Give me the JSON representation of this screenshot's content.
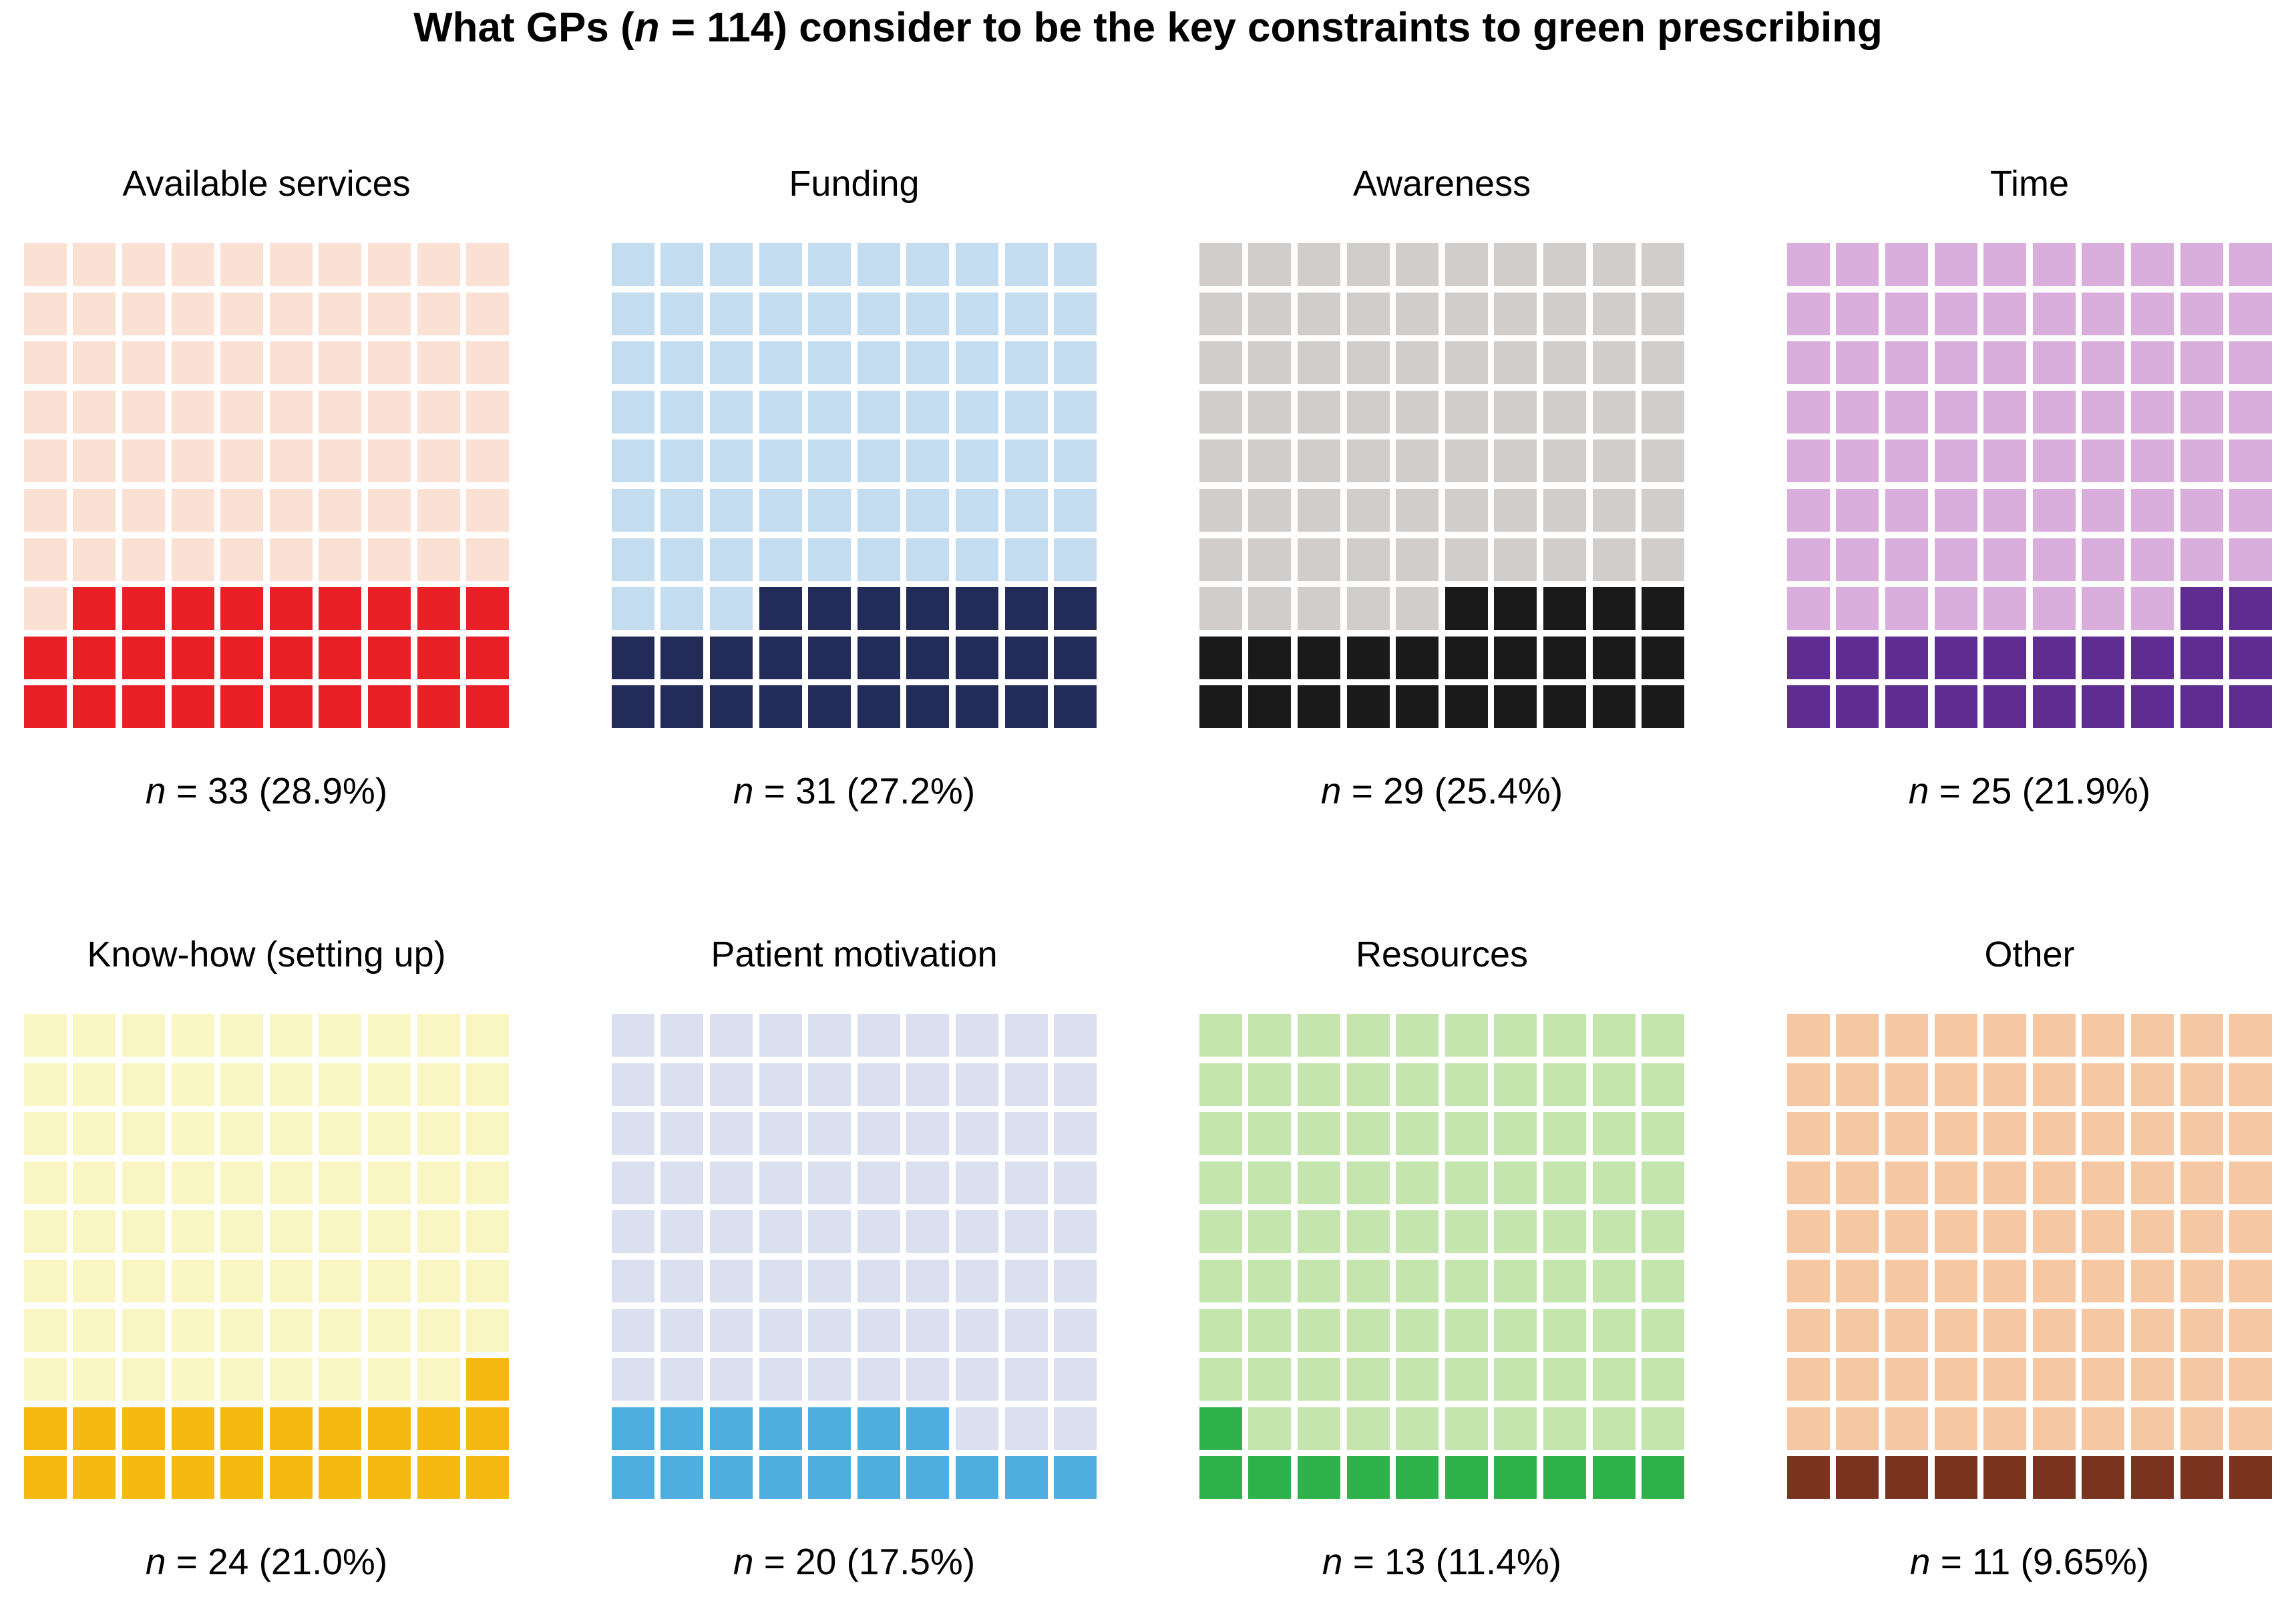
{
  "title": {
    "part1": "What GPs (",
    "n_italic": "n",
    "part2": " = 114) consider to be the key constraints to green prescribing"
  },
  "chart_data": {
    "type": "waffle",
    "title": "What GPs (n = 114) consider to be the key constraints to green prescribing",
    "total_n": 114,
    "grid_layout": "2 rows x 4 columns of waffle panels; each waffle is a 10x10 grid of squares, 1 square = 1% of respondents, dark squares filled from the bottom",
    "categories": [
      {
        "slug": "available-services",
        "label": "Available services",
        "n": 33,
        "percent": 28.9,
        "stat_italic": "n",
        "stat_rest": " = 33 (28.9%)",
        "filled_squares": 29,
        "light_color": "#FAE1D4",
        "dark_color": "#E92127",
        "pattern": [
          "0000000000",
          "0000000000",
          "0000000000",
          "0000000000",
          "0000000000",
          "0000000000",
          "0000000000",
          "0111111111",
          "1111111111",
          "1111111111"
        ]
      },
      {
        "slug": "funding",
        "label": "Funding",
        "n": 31,
        "percent": 27.2,
        "stat_italic": "n",
        "stat_rest": " = 31 (27.2%)",
        "filled_squares": 27,
        "light_color": "#C3DCEF",
        "dark_color": "#232C59",
        "pattern": [
          "0000000000",
          "0000000000",
          "0000000000",
          "0000000000",
          "0000000000",
          "0000000000",
          "0000000000",
          "0001111111",
          "1111111111",
          "1111111111"
        ]
      },
      {
        "slug": "awareness",
        "label": "Awareness",
        "n": 29,
        "percent": 25.4,
        "stat_italic": "n",
        "stat_rest": " = 29 (25.4%)",
        "filled_squares": 25,
        "light_color": "#D1CDCB",
        "dark_color": "#1A1A1A",
        "pattern": [
          "0000000000",
          "0000000000",
          "0000000000",
          "0000000000",
          "0000000000",
          "0000000000",
          "0000000000",
          "0000011111",
          "1111111111",
          "1111111111"
        ]
      },
      {
        "slug": "time",
        "label": "Time",
        "n": 25,
        "percent": 21.9,
        "stat_italic": "n",
        "stat_rest": " = 25 (21.9%)",
        "filled_squares": 22,
        "light_color": "#D9ADDC",
        "dark_color": "#5F2D91",
        "pattern": [
          "0000000000",
          "0000000000",
          "0000000000",
          "0000000000",
          "0000000000",
          "0000000000",
          "0000000000",
          "0000000011",
          "1111111111",
          "1111111111"
        ]
      },
      {
        "slug": "know-how",
        "label": "Know-how (setting up)",
        "n": 24,
        "percent": 21.0,
        "stat_italic": "n",
        "stat_rest": " = 24 (21.0%)",
        "filled_squares": 21,
        "light_color": "#FAF6C4",
        "dark_color": "#F5B912",
        "pattern": [
          "0000000000",
          "0000000000",
          "0000000000",
          "0000000000",
          "0000000000",
          "0000000000",
          "0000000000",
          "0000000001",
          "1111111111",
          "1111111111"
        ]
      },
      {
        "slug": "patient-motivation",
        "label": "Patient motivation",
        "n": 20,
        "percent": 17.5,
        "stat_italic": "n",
        "stat_rest": " = 20 (17.5%)",
        "filled_squares": 17,
        "light_color": "#DBE0F1",
        "dark_color": "#4EAEDF",
        "pattern": [
          "0000000000",
          "0000000000",
          "0000000000",
          "0000000000",
          "0000000000",
          "0000000000",
          "0000000000",
          "0000000000",
          "1111111000",
          "1111111111"
        ]
      },
      {
        "slug": "resources",
        "label": "Resources",
        "n": 13,
        "percent": 11.4,
        "stat_italic": "n",
        "stat_rest": " = 13 (11.4%)",
        "filled_squares": 11,
        "light_color": "#C5E5AF",
        "dark_color": "#2FB24B",
        "pattern": [
          "0000000000",
          "0000000000",
          "0000000000",
          "0000000000",
          "0000000000",
          "0000000000",
          "0000000000",
          "0000000000",
          "1000000000",
          "1111111111"
        ]
      },
      {
        "slug": "other",
        "label": "Other",
        "n": 11,
        "percent": 9.65,
        "stat_italic": "n",
        "stat_rest": " = 11 (9.65%)",
        "filled_squares": 10,
        "light_color": "#F5C7A2",
        "dark_color": "#7A331E",
        "pattern": [
          "0000000000",
          "0000000000",
          "0000000000",
          "0000000000",
          "0000000000",
          "0000000000",
          "0000000000",
          "0000000000",
          "0000000000",
          "1111111111"
        ]
      }
    ]
  }
}
